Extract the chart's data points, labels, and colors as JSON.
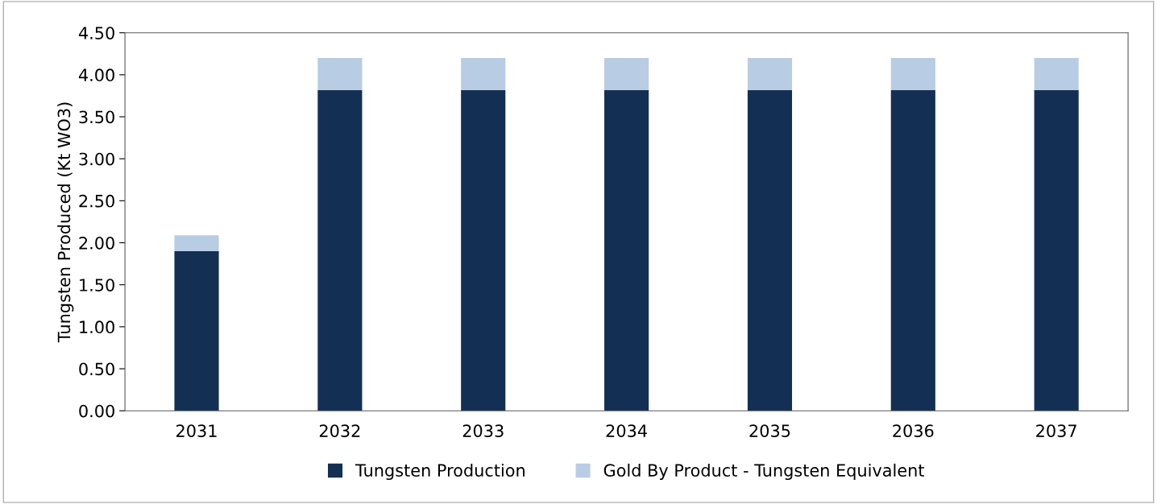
{
  "chart_data": {
    "type": "bar",
    "stacked": true,
    "ylabel": "Tungsten Produced (Kt WO3)",
    "categories": [
      "2031",
      "2032",
      "2033",
      "2034",
      "2035",
      "2036",
      "2037"
    ],
    "series": [
      {
        "name": "Tungsten Production",
        "color": "#142f54",
        "values": [
          1.9,
          3.82,
          3.82,
          3.82,
          3.82,
          3.82,
          3.82
        ]
      },
      {
        "name": "Gold By Product - Tungsten Equivalent",
        "color": "#b8cce4",
        "values": [
          0.19,
          0.38,
          0.38,
          0.38,
          0.38,
          0.38,
          0.38
        ]
      }
    ],
    "ylim": [
      0,
      4.5
    ],
    "yticks": [
      {
        "value": 0,
        "label": "0.00"
      },
      {
        "value": 0.5,
        "label": "0.50"
      },
      {
        "value": 1,
        "label": "1.00"
      },
      {
        "value": 1.5,
        "label": "1.50"
      },
      {
        "value": 2,
        "label": "2.00"
      },
      {
        "value": 2.5,
        "label": "2.50"
      },
      {
        "value": 3,
        "label": "3.00"
      },
      {
        "value": 3.5,
        "label": "3.50"
      },
      {
        "value": 4,
        "label": "4.00"
      },
      {
        "value": 4.5,
        "label": "4.50"
      }
    ],
    "grid": false,
    "legend": "bottom"
  }
}
